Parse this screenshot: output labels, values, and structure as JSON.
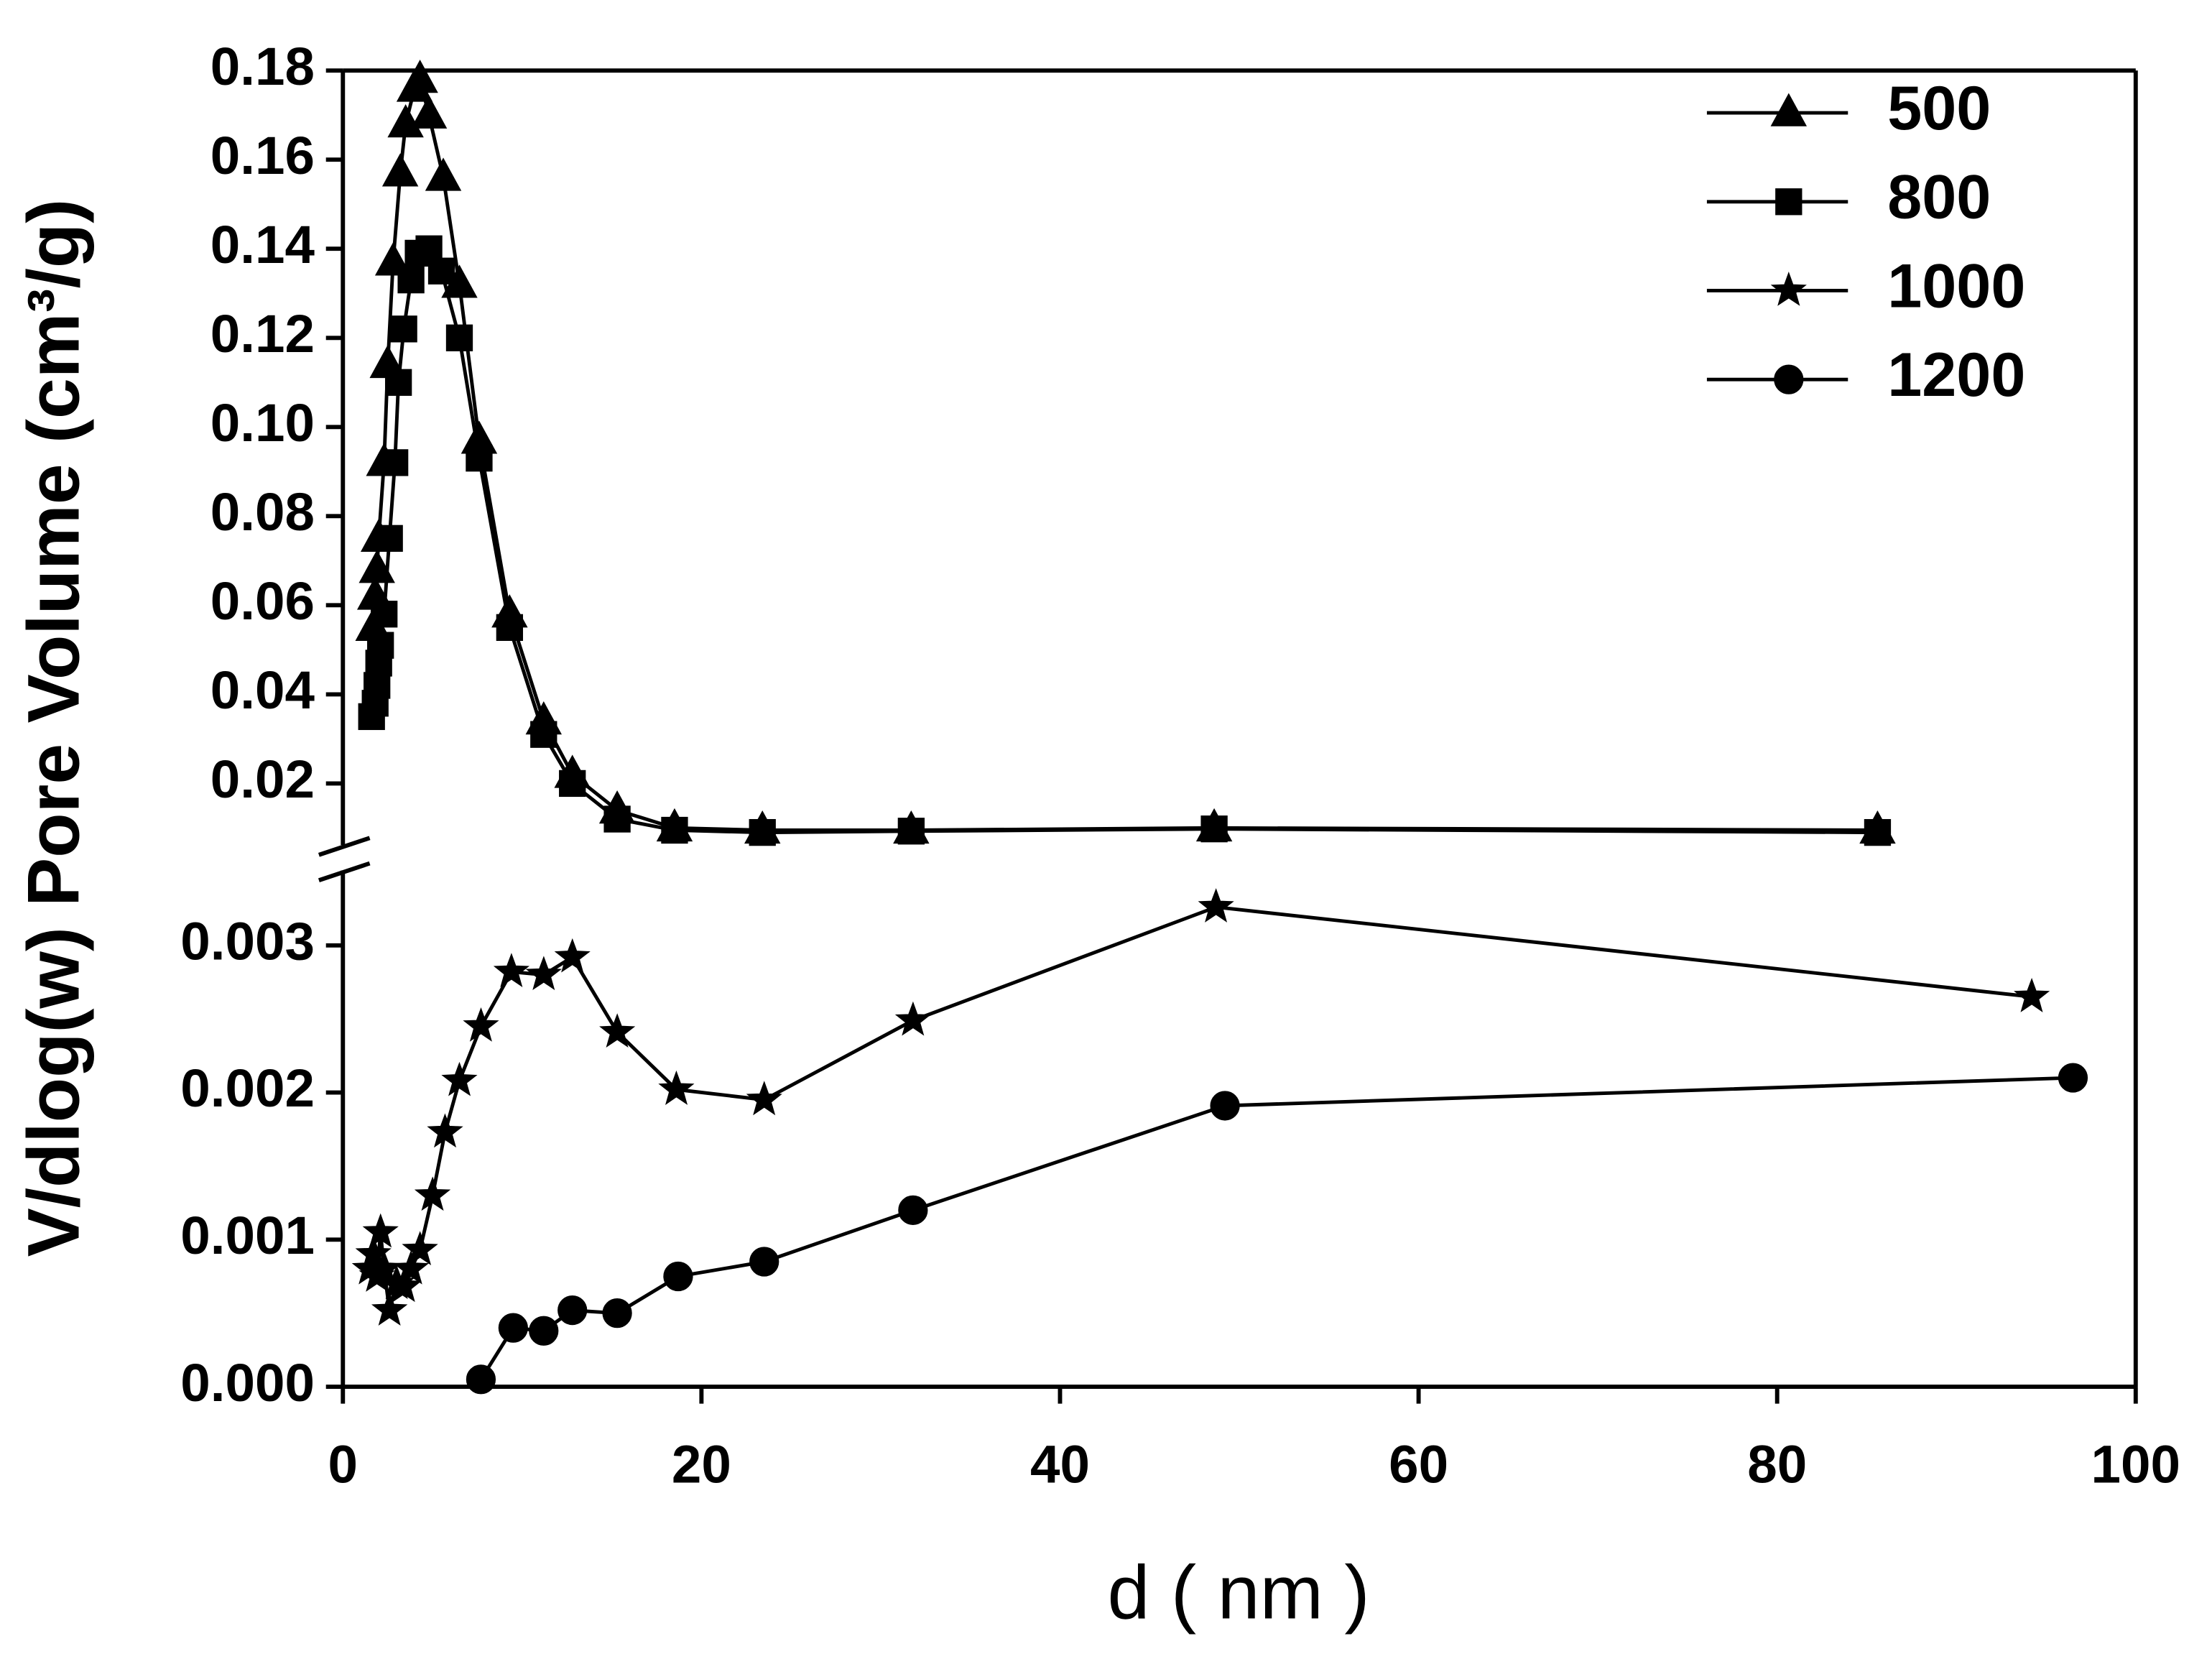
{
  "chart_data": [
    {
      "type": "line",
      "ylabel": "V/dlog(w) Pore Volume (cm³/g)",
      "legend": "upper right",
      "xlim": [
        0,
        100
      ],
      "ylim": [
        0.0065,
        0.18
      ],
      "yticks": [
        0.02,
        0.04,
        0.06,
        0.08,
        {
          "value": 0.1,
          "label": "0.10"
        },
        0.12,
        0.14,
        0.16,
        0.18
      ],
      "series": [
        {
          "name": "500",
          "color": "#000000",
          "marker": "triangle",
          "x": [
            1.7,
            1.8,
            1.9,
            2.0,
            2.3,
            2.5,
            2.8,
            3.2,
            3.5,
            4.0,
            4.3,
            4.8,
            5.6,
            6.5,
            7.6,
            9.3,
            11.2,
            12.8,
            15.3,
            18.5,
            23.4,
            31.7,
            48.6,
            85.6
          ],
          "values": [
            0.055,
            0.062,
            0.068,
            0.075,
            0.092,
            0.114,
            0.137,
            0.157,
            0.168,
            0.176,
            0.178,
            0.17,
            0.156,
            0.132,
            0.097,
            0.058,
            0.034,
            0.022,
            0.014,
            0.01,
            0.0095,
            0.0095,
            0.01,
            0.0095
          ]
        },
        {
          "name": "800",
          "color": "#000000",
          "marker": "square",
          "x": [
            1.6,
            1.8,
            1.9,
            2.0,
            2.1,
            2.3,
            2.6,
            2.9,
            3.1,
            3.4,
            3.8,
            4.2,
            4.8,
            5.5,
            6.5,
            7.6,
            9.3,
            11.2,
            12.8,
            15.3,
            18.5,
            23.4,
            31.7,
            48.6,
            85.6
          ],
          "values": [
            0.035,
            0.038,
            0.042,
            0.047,
            0.051,
            0.058,
            0.075,
            0.092,
            0.11,
            0.122,
            0.133,
            0.139,
            0.14,
            0.135,
            0.12,
            0.093,
            0.055,
            0.031,
            0.02,
            0.012,
            0.0095,
            0.009,
            0.0093,
            0.0098,
            0.009
          ]
        }
      ]
    },
    {
      "type": "line",
      "xlabel": "d ( nm )",
      "xlim": [
        0,
        100
      ],
      "xticks": [
        0,
        20,
        40,
        60,
        80,
        100
      ],
      "ylim": [
        0,
        0.0035
      ],
      "yticks": [
        {
          "value": 0,
          "label": "0.000"
        },
        0.001,
        0.002,
        0.003
      ],
      "series": [
        {
          "name": "1000",
          "color": "#000000",
          "marker": "star",
          "x": [
            1.5,
            1.7,
            1.9,
            2.1,
            2.3,
            2.6,
            3.0,
            3.4,
            3.8,
            4.3,
            5.0,
            5.7,
            6.5,
            7.7,
            9.4,
            11.2,
            12.8,
            15.3,
            18.6,
            23.5,
            31.8,
            48.7,
            94.2
          ],
          "values": [
            0.0008,
            0.0009,
            0.00075,
            0.00105,
            0.0008,
            0.00052,
            0.0007,
            0.00068,
            0.0008,
            0.00093,
            0.0013,
            0.00173,
            0.00208,
            0.00245,
            0.00282,
            0.0028,
            0.00292,
            0.00241,
            0.00202,
            0.00195,
            0.00249,
            0.00326,
            0.00265
          ]
        },
        {
          "name": "1200",
          "color": "#000000",
          "marker": "circle",
          "x": [
            7.7,
            9.5,
            11.2,
            12.8,
            15.3,
            18.7,
            23.5,
            31.8,
            49.2,
            96.5
          ],
          "values": [
            5e-05,
            0.0004,
            0.00038,
            0.00052,
            0.0005,
            0.00075,
            0.00085,
            0.0012,
            0.00191,
            0.0021
          ]
        }
      ]
    }
  ]
}
